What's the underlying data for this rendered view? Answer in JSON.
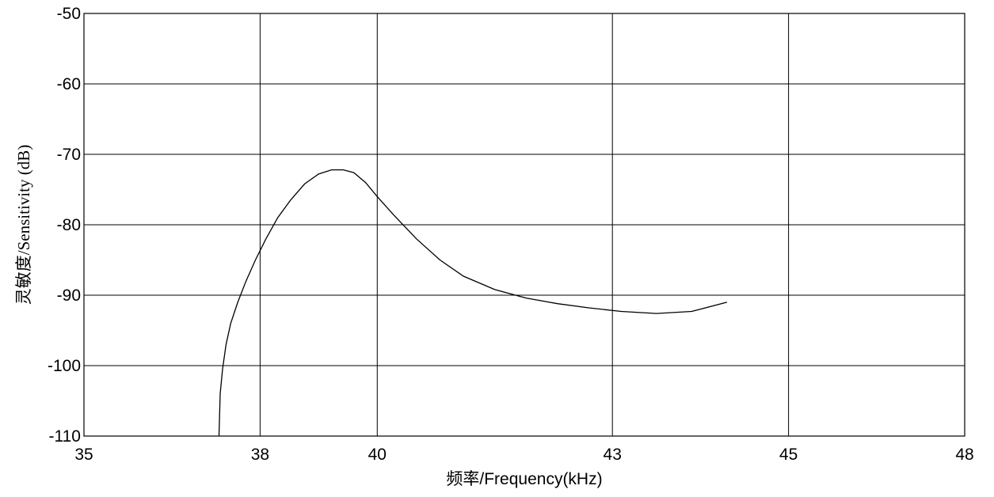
{
  "chart_data": {
    "type": "line",
    "xlabel": "频率/Frequency(kHz)",
    "ylabel": "灵敏度/Sensitivity (dB)",
    "xticks": [
      {
        "value": 35,
        "label": "35"
      },
      {
        "value": 38,
        "label": "38"
      },
      {
        "value": 40,
        "label": "40"
      },
      {
        "value": 43,
        "label": "43"
      },
      {
        "value": 45,
        "label": "45"
      },
      {
        "value": 48,
        "label": "48"
      }
    ],
    "xtick_positions": [
      0,
      2,
      3.33,
      6,
      8,
      10
    ],
    "yticks": [
      -50,
      -60,
      -70,
      -80,
      -90,
      -100,
      -110
    ],
    "ylim": [
      -110,
      -50
    ],
    "grid": true,
    "legend": "none",
    "line_color": "#000000",
    "series": [
      {
        "x": [
          37.3,
          37.32,
          37.36,
          37.42,
          37.5,
          37.62,
          37.76,
          37.92,
          38.1,
          38.3,
          38.52,
          38.76,
          39.0,
          39.22,
          39.42,
          39.6,
          39.8,
          40.0,
          40.2,
          40.5,
          40.8,
          41.1,
          41.5,
          41.9,
          42.3,
          42.7,
          43.1,
          43.5,
          43.9,
          44.3
        ],
        "y": [
          -110,
          -104,
          -100.5,
          -97,
          -94,
          -91,
          -88,
          -85,
          -82,
          -79,
          -76.5,
          -74.2,
          -72.8,
          -72.2,
          -72.2,
          -72.6,
          -74,
          -76,
          -78.5,
          -82,
          -85,
          -87.3,
          -89.2,
          -90.4,
          -91.2,
          -91.8,
          -92.3,
          -92.6,
          -92.3,
          -91
        ]
      }
    ]
  }
}
